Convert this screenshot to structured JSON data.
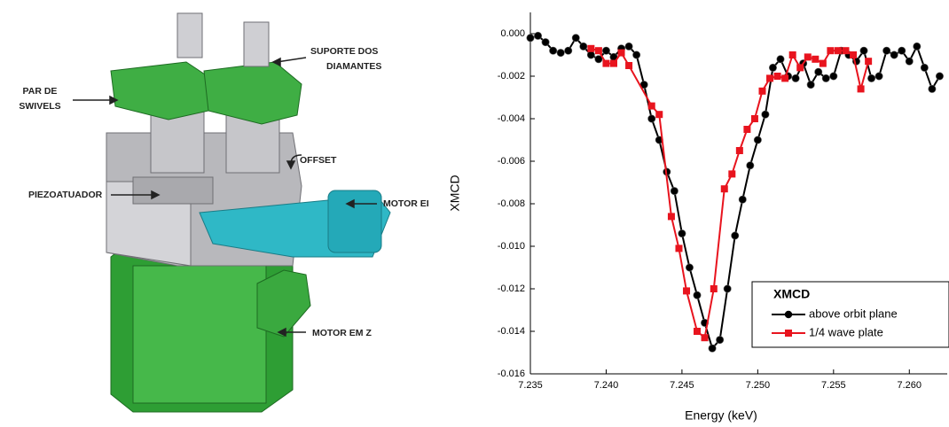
{
  "diagram": {
    "labels": [
      {
        "lines": [
          "SUPORTE DOS",
          "DIAMANTES"
        ]
      },
      {
        "lines": [
          "PAR DE",
          "SWIVELS"
        ]
      },
      {
        "lines": [
          "OFFSET"
        ]
      },
      {
        "lines": [
          "PIEZOATUADOR"
        ]
      },
      {
        "lines": [
          "MOTOR EI"
        ]
      },
      {
        "lines": [
          "MOTOR EM Z"
        ]
      }
    ]
  },
  "chart_data": {
    "type": "line",
    "x_label": "Energy (keV)",
    "y_label": "XMCD",
    "legend_title": "XMCD",
    "legend": "lower-right",
    "xlim": [
      7.235,
      7.2625
    ],
    "ylim": [
      -0.016,
      0.001
    ],
    "xticks": [
      7.235,
      {
        "value": 7.24,
        "label": "7.240"
      },
      7.245,
      {
        "value": 7.25,
        "label": "7.250"
      },
      7.255,
      {
        "value": 7.26,
        "label": "7.260"
      }
    ],
    "yticks": [
      {
        "value": 0,
        "label": "0.000"
      },
      {
        "value": -0.002,
        "label": "-0.002"
      },
      {
        "value": -0.004,
        "label": "-0.004"
      },
      {
        "value": -0.006,
        "label": "-0.006"
      },
      {
        "value": -0.008,
        "label": "-0.008"
      },
      {
        "value": -0.01,
        "label": "-0.010"
      },
      {
        "value": -0.012,
        "label": "-0.012"
      },
      {
        "value": -0.014,
        "label": "-0.014"
      },
      {
        "value": -0.016,
        "label": "-0.016"
      }
    ],
    "series": [
      {
        "name": "above orbit plane",
        "color": "#000000",
        "marker": "circle",
        "x": [
          7.235,
          7.2355,
          7.236,
          7.2365,
          7.237,
          7.2375,
          7.238,
          7.2385,
          7.239,
          7.2395,
          7.24,
          7.2405,
          7.241,
          7.2415,
          7.242,
          7.2425,
          7.243,
          7.2435,
          7.244,
          7.2445,
          7.245,
          7.2455,
          7.246,
          7.2465,
          7.247,
          7.2475,
          7.248,
          7.2485,
          7.249,
          7.2495,
          7.25,
          7.2505,
          7.251,
          7.2515,
          7.252,
          7.2525,
          7.253,
          7.2535,
          7.254,
          7.2545,
          7.255,
          7.2555,
          7.256,
          7.2565,
          7.257,
          7.2575,
          7.258,
          7.2585,
          7.259,
          7.2595,
          7.26,
          7.2605,
          7.261,
          7.2615,
          7.262
        ],
        "values": [
          -0.0002,
          -0.0001,
          -0.0004,
          -0.0008,
          -0.0009,
          -0.0008,
          -0.0002,
          -0.0006,
          -0.001,
          -0.0012,
          -0.0008,
          -0.0011,
          -0.0007,
          -0.0006,
          -0.001,
          -0.0024,
          -0.004,
          -0.005,
          -0.0065,
          -0.0074,
          -0.0094,
          -0.011,
          -0.0123,
          -0.0136,
          -0.0148,
          -0.0144,
          -0.012,
          -0.0095,
          -0.0078,
          -0.0062,
          -0.005,
          -0.0038,
          -0.0016,
          -0.0012,
          -0.002,
          -0.0021,
          -0.0014,
          -0.0024,
          -0.0018,
          -0.0021,
          -0.002,
          -0.0008,
          -0.001,
          -0.0013,
          -0.0008,
          -0.0021,
          -0.002,
          -0.0008,
          -0.001,
          -0.0008,
          -0.0013,
          -0.0006,
          -0.0016,
          -0.0026,
          -0.002
        ]
      },
      {
        "name": "1/4 wave plate",
        "color": "#e8141e",
        "marker": "square",
        "x": [
          7.239,
          7.2395,
          7.24,
          7.2405,
          7.241,
          7.2415,
          7.243,
          7.2435,
          7.2443,
          7.2448,
          7.2453,
          7.246,
          7.2465,
          7.2471,
          7.2478,
          7.2483,
          7.2488,
          7.2493,
          7.2498,
          7.2503,
          7.2508,
          7.2513,
          7.2518,
          7.2523,
          7.2528,
          7.2533,
          7.2538,
          7.2543,
          7.2548,
          7.2553,
          7.2558,
          7.2563,
          7.2568,
          7.2573
        ],
        "values": [
          -0.0007,
          -0.0008,
          -0.0014,
          -0.0014,
          -0.0009,
          -0.0015,
          -0.0034,
          -0.0038,
          -0.0086,
          -0.0101,
          -0.0121,
          -0.014,
          -0.0143,
          -0.012,
          -0.0073,
          -0.0066,
          -0.0055,
          -0.0045,
          -0.004,
          -0.0027,
          -0.0021,
          -0.002,
          -0.0021,
          -0.001,
          -0.0016,
          -0.0011,
          -0.0012,
          -0.0014,
          -0.0008,
          -0.0008,
          -0.0008,
          -0.001,
          -0.0026,
          -0.0013
        ]
      }
    ]
  }
}
